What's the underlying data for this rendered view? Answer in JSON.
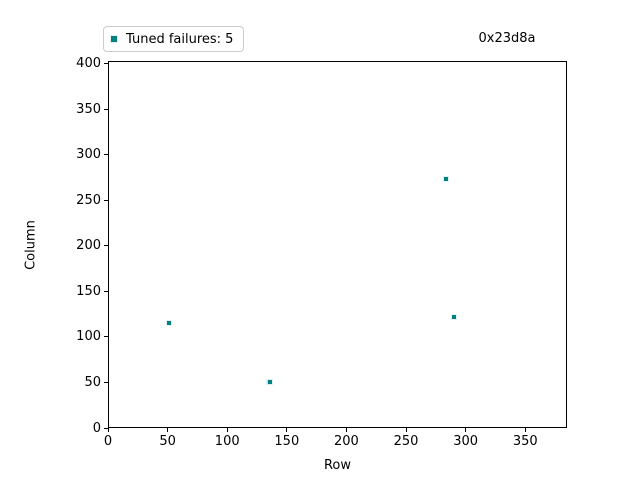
{
  "chart_data": {
    "type": "scatter",
    "annotation": "0x23d8a",
    "legend_label": "Tuned failures: 5",
    "failure_count": 5,
    "xlabel": "Row",
    "ylabel": "Column",
    "xlim": [
      0,
      385
    ],
    "ylim": [
      0,
      403
    ],
    "xticks": [
      0,
      50,
      100,
      150,
      200,
      250,
      300,
      350
    ],
    "yticks": [
      0,
      50,
      100,
      150,
      200,
      250,
      300,
      350,
      400
    ],
    "grid": false,
    "legend_position": "upper-left-above-axes",
    "series": [
      {
        "name": "Tuned failures",
        "marker": "square",
        "color": "#008080",
        "edge_color": "#ffffff",
        "points": [
          [
            50,
            116
          ],
          [
            134,
            52
          ],
          [
            135,
            52
          ],
          [
            283,
            275
          ],
          [
            289,
            123
          ]
        ]
      }
    ]
  },
  "colors": {
    "marker": "#008080",
    "axis": "#000000",
    "legend_border": "#cccccc",
    "background": "#ffffff"
  }
}
